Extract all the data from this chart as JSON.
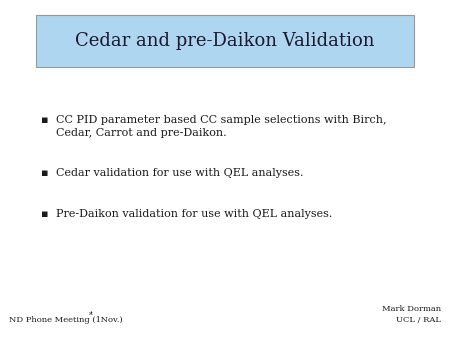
{
  "title": "Cedar and pre-Daikon Validation",
  "title_box_color": "#aed6f1",
  "title_box_edge_color": "#999999",
  "slide_background": "#ffffff",
  "bullet_points": [
    "CC PID parameter based CC sample selections with Birch,\nCedar, Carrot and pre-Daikon.",
    "Cedar validation for use with QEL analyses.",
    "Pre-Daikon validation for use with QEL analyses."
  ],
  "footer_right_line1": "Mark Dorman",
  "footer_right_line2": "UCL / RAL",
  "title_fontsize": 13,
  "bullet_fontsize": 8,
  "footer_fontsize": 6
}
